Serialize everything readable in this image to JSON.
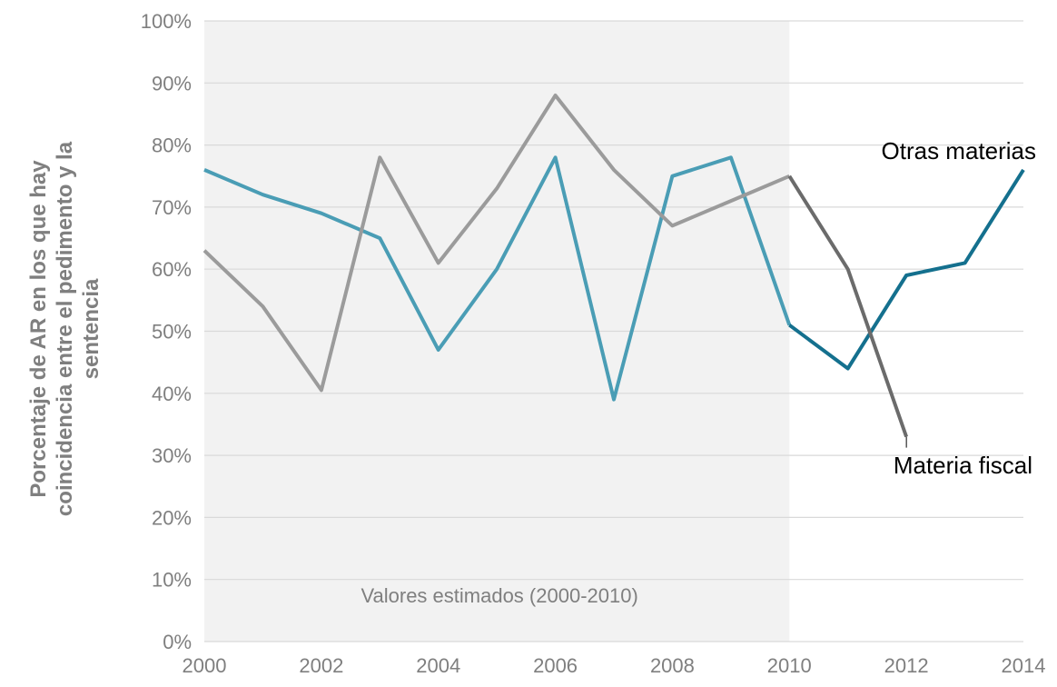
{
  "chart_data": {
    "type": "line",
    "title": "",
    "xlabel": "",
    "ylabel_lines": [
      "Porcentaje de AR en los que hay",
      "coincidencia entre el pedimento y la",
      "sentencia"
    ],
    "ylim": [
      0,
      100
    ],
    "yticks": [
      "0%",
      "10%",
      "20%",
      "30%",
      "40%",
      "50%",
      "60%",
      "70%",
      "80%",
      "90%",
      "100%"
    ],
    "xlim": [
      2000,
      2014
    ],
    "xticks": [
      "2000",
      "2002",
      "2004",
      "2006",
      "2008",
      "2010",
      "2012",
      "2014"
    ],
    "grid": "horizontal",
    "shaded_region": {
      "x_start": 2000,
      "x_end": 2010,
      "label": "Valores estimados (2000-2010)"
    },
    "series": [
      {
        "name": "Otras materias",
        "color_estimated": "#4a9db5",
        "color_actual": "#14708e",
        "x": [
          2000,
          2001,
          2002,
          2003,
          2004,
          2005,
          2006,
          2007,
          2008,
          2009,
          2010,
          2011,
          2012,
          2013,
          2014
        ],
        "values": [
          76,
          72,
          69,
          65,
          47,
          60,
          78,
          39,
          75,
          78,
          51,
          44,
          59,
          61,
          76
        ]
      },
      {
        "name": "Materia fiscal",
        "color_estimated": "#9b9b9b",
        "color_actual": "#6b6b6b",
        "x": [
          2000,
          2001,
          2002,
          2003,
          2004,
          2005,
          2006,
          2007,
          2008,
          2009,
          2010,
          2011,
          2012
        ],
        "values": [
          63,
          54,
          40.5,
          78,
          61,
          73,
          88,
          76,
          67,
          71,
          75,
          60,
          33
        ]
      }
    ],
    "annotations": [
      {
        "text": "Otras materias",
        "series": "Otras materias"
      },
      {
        "text": "Materia fiscal",
        "series": "Materia fiscal"
      }
    ]
  }
}
